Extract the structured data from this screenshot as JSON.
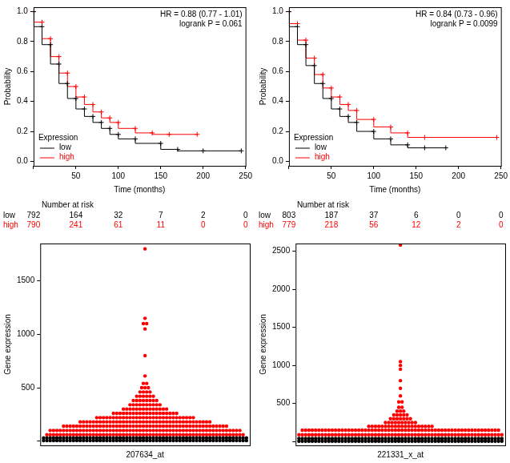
{
  "chart_data": [
    {
      "type": "line",
      "x_label": "Time (months)",
      "y_label": "Probability",
      "annotations": [
        "HR = 0.88 (0.77 - 1.01)",
        "logrank P = 0.061"
      ],
      "legend": "lower left",
      "legend_title": "Expression",
      "line_style": "step",
      "marker": "cross",
      "grid": false,
      "xlim": [
        0,
        250
      ],
      "xticks": [
        0,
        50,
        100,
        150,
        200,
        250
      ],
      "ylim": [
        -0.03,
        1.03
      ],
      "yticks": [
        {
          "value": 0,
          "label": "0.0"
        },
        0.2,
        0.4,
        0.6,
        0.8,
        {
          "value": 1,
          "label": "1.0"
        }
      ],
      "series": [
        {
          "name": "low",
          "color": "#000000",
          "x": [
            0,
            10,
            20,
            30,
            40,
            50,
            60,
            70,
            80,
            90,
            100,
            120,
            150,
            170,
            200,
            245
          ],
          "values": [
            1.0,
            0.9,
            0.78,
            0.65,
            0.52,
            0.42,
            0.35,
            0.3,
            0.26,
            0.22,
            0.18,
            0.15,
            0.12,
            0.08,
            0.07,
            0.07
          ]
        },
        {
          "name": "high",
          "color": "#ff0000",
          "x": [
            0,
            10,
            20,
            30,
            40,
            50,
            60,
            70,
            80,
            90,
            100,
            120,
            140,
            160,
            193
          ],
          "values": [
            1.0,
            0.93,
            0.82,
            0.7,
            0.59,
            0.5,
            0.43,
            0.38,
            0.33,
            0.29,
            0.26,
            0.22,
            0.19,
            0.18,
            0.18
          ]
        }
      ],
      "risk_table": {
        "title": "Number at risk",
        "times": [
          0,
          50,
          100,
          150,
          200,
          250
        ],
        "rows": [
          {
            "name": "low",
            "color": "#000000",
            "values": [
              792,
              164,
              32,
              7,
              2,
              0
            ]
          },
          {
            "name": "high",
            "color": "#ff0000",
            "values": [
              790,
              241,
              61,
              11,
              0,
              0
            ]
          }
        ]
      }
    },
    {
      "type": "line",
      "x_label": "Time (months)",
      "y_label": "Probability",
      "annotations": [
        "HR = 0.84 (0.73 - 0.96)",
        "logrank P = 0.0099"
      ],
      "legend": "lower left",
      "legend_title": "Expression",
      "line_style": "step",
      "marker": "cross",
      "grid": false,
      "xlim": [
        0,
        250
      ],
      "xticks": [
        0,
        50,
        100,
        150,
        200,
        250
      ],
      "ylim": [
        -0.03,
        1.03
      ],
      "yticks": [
        {
          "value": 0,
          "label": "0.0"
        },
        0.2,
        0.4,
        0.6,
        0.8,
        {
          "value": 1,
          "label": "1.0"
        }
      ],
      "series": [
        {
          "name": "low",
          "color": "#000000",
          "x": [
            0,
            10,
            20,
            30,
            40,
            50,
            60,
            70,
            80,
            100,
            120,
            140,
            160,
            185
          ],
          "values": [
            1.0,
            0.9,
            0.78,
            0.64,
            0.52,
            0.42,
            0.35,
            0.3,
            0.26,
            0.2,
            0.15,
            0.11,
            0.09,
            0.09
          ]
        },
        {
          "name": "high",
          "color": "#ff0000",
          "x": [
            0,
            10,
            20,
            30,
            40,
            50,
            60,
            70,
            80,
            100,
            120,
            140,
            160,
            245
          ],
          "values": [
            1.0,
            0.92,
            0.81,
            0.69,
            0.58,
            0.49,
            0.43,
            0.38,
            0.34,
            0.28,
            0.23,
            0.19,
            0.16,
            0.16
          ]
        }
      ],
      "risk_table": {
        "title": "Number at risk",
        "times": [
          0,
          50,
          100,
          150,
          200,
          250
        ],
        "rows": [
          {
            "name": "low",
            "color": "#000000",
            "values": [
              803,
              187,
              37,
              6,
              0,
              0
            ]
          },
          {
            "name": "high",
            "color": "#ff0000",
            "values": [
              779,
              218,
              56,
              12,
              2,
              0
            ]
          }
        ]
      }
    },
    {
      "type": "dot_plot",
      "x_label": "207634_at",
      "y_label": "Gene expression",
      "tick_labels": "y",
      "grid": false,
      "marker": "circle",
      "ylim": [
        -40,
        1850
      ],
      "yticks": [
        0,
        500,
        1000,
        1500
      ],
      "series": [
        {
          "color": "#000000",
          "values": [
            5,
            30
          ],
          "counts": [
            62,
            62
          ]
        },
        {
          "color": "#ff0000",
          "values": [
            60,
            100,
            140,
            180,
            220,
            260,
            300,
            340,
            380,
            420,
            460,
            500,
            540,
            610,
            800,
            1050,
            1100,
            1150,
            1800
          ],
          "counts": [
            60,
            58,
            50,
            40,
            30,
            20,
            14,
            10,
            8,
            6,
            4,
            3,
            2,
            1,
            1,
            1,
            2,
            1,
            1
          ]
        }
      ]
    },
    {
      "type": "dot_plot",
      "x_label": "221331_x_at",
      "y_label": "Gene expression",
      "tick_labels": "y",
      "grid": false,
      "marker": "circle",
      "ylim": [
        -50,
        2600
      ],
      "yticks": [
        0,
        500,
        1000,
        1500,
        2000,
        2500
      ],
      "series": [
        {
          "color": "#000000",
          "values": [
            5,
            40
          ],
          "counts": [
            62,
            62
          ]
        },
        {
          "color": "#ff0000",
          "values": [
            90,
            150,
            200,
            250,
            300,
            350,
            400,
            450,
            520,
            600,
            700,
            800,
            950,
            1000,
            1050,
            2580
          ],
          "counts": [
            62,
            60,
            20,
            10,
            7,
            5,
            3,
            2,
            2,
            1,
            1,
            1,
            1,
            1,
            1,
            1
          ]
        }
      ]
    }
  ]
}
